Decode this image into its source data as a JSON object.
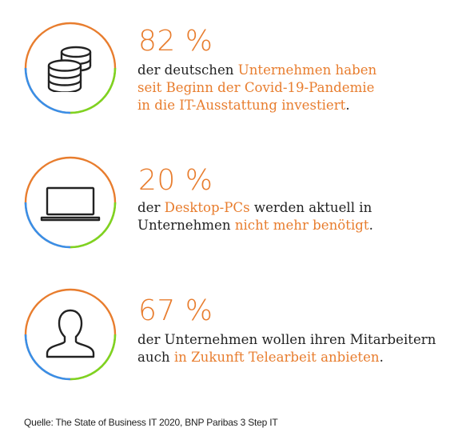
{
  "colors": {
    "accent": "#e87d2e",
    "blue": "#3a8ee6",
    "green": "#7ed321",
    "text": "#222222"
  },
  "stats": [
    {
      "icon": "database-coins-icon",
      "percent": "82 %",
      "line1": {
        "a": "der deutschen ",
        "b": "Unternehmen haben"
      },
      "line2": {
        "b": "seit Beginn der Covid-19-Pandemie"
      },
      "line3": {
        "b": "in die IT-Ausstattung investiert",
        "c": "."
      }
    },
    {
      "icon": "laptop-icon",
      "percent": "20 %",
      "line1": {
        "a": "der ",
        "b": "Desktop-PCs",
        "c": " werden aktuell in"
      },
      "line2": {
        "a": "Unternehmen ",
        "b": "nicht mehr benötigt",
        "c": "."
      }
    },
    {
      "icon": "user-icon",
      "percent": "67 %",
      "line1": {
        "a": "der Unternehmen wollen ihren Mitarbeitern"
      },
      "line2": {
        "a": "auch ",
        "b": "in Zukunft Telearbeit anbieten",
        "c": "."
      }
    }
  ],
  "source": "Quelle: The State of Business IT 2020, BNP Paribas 3 Step IT"
}
